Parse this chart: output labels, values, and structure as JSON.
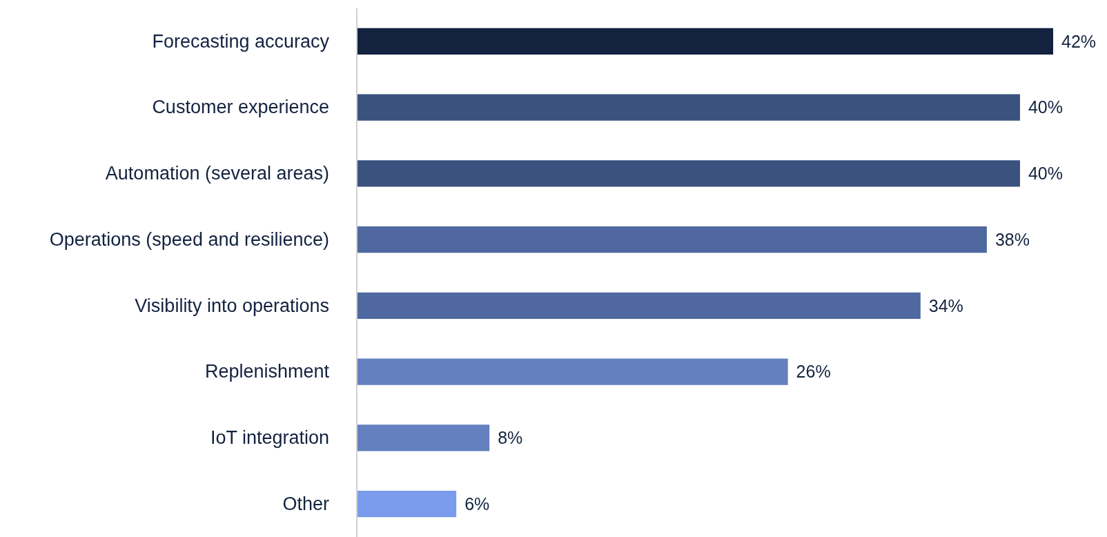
{
  "chart_data": {
    "type": "bar",
    "orientation": "horizontal",
    "categories": [
      "Forecasting accuracy",
      "Customer experience",
      "Automation (several areas)",
      "Operations (speed and resilience)",
      "Visibility into operations",
      "Replenishment",
      "IoT integration",
      "Other"
    ],
    "values": [
      42,
      40,
      40,
      38,
      34,
      26,
      8,
      6
    ],
    "value_labels": [
      "42%",
      "40%",
      "40%",
      "38%",
      "34%",
      "26%",
      "8%",
      "6%"
    ],
    "colors": [
      "#12223f",
      "#3b527f",
      "#3b527f",
      "#4f689f",
      "#4f689f",
      "#6480bf",
      "#6480bf",
      "#7b9ced"
    ]
  }
}
